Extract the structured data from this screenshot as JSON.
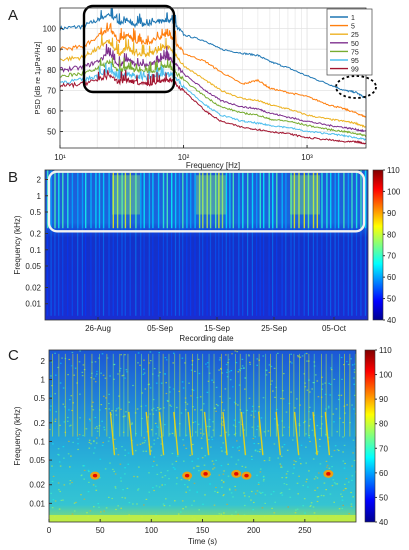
{
  "chart_data": [
    {
      "panel_label": "A",
      "type": "line",
      "xlabel": "Frequency [Hz]",
      "ylabel": "PSD [dB re 1μPa²/Hz]",
      "xscale": "log",
      "xlim": [
        10,
        3000
      ],
      "ylim": [
        42,
        110
      ],
      "xticks": [
        "10¹",
        "10²",
        "10³"
      ],
      "yticks": [
        50,
        60,
        70,
        80,
        90,
        100
      ],
      "grid": true,
      "legend_position": "top-right",
      "x": [
        10,
        15,
        20,
        25,
        30,
        35,
        40,
        50,
        60,
        70,
        80,
        100,
        150,
        200,
        300,
        400,
        500,
        700,
        1000,
        1500,
        2000,
        2500,
        3000
      ],
      "series": [
        {
          "name": "1",
          "color": "#1f77b4",
          "values": [
            100,
            101,
            104,
            107,
            103,
            104,
            102,
            102,
            103,
            104,
            104,
            97,
            94,
            90,
            88,
            87,
            84,
            81,
            77,
            73,
            70,
            69,
            66
          ]
        },
        {
          "name": "5",
          "color": "#ff7f0e",
          "values": [
            90,
            91,
            96,
            100,
            94,
            97,
            94,
            93,
            95,
            97,
            96,
            88,
            84,
            79,
            73,
            75,
            71,
            69,
            67,
            63,
            61,
            59,
            57
          ]
        },
        {
          "name": "25",
          "color": "#edb120",
          "values": [
            85,
            86,
            90,
            94,
            87,
            91,
            88,
            87,
            89,
            91,
            90,
            82,
            75,
            70,
            66,
            65,
            63,
            61,
            58,
            56,
            55,
            54,
            52
          ]
        },
        {
          "name": "50",
          "color": "#7e2f8e",
          "values": [
            80,
            81,
            84,
            88,
            82,
            85,
            83,
            82,
            84,
            86,
            85,
            78,
            70,
            65,
            62,
            61,
            59,
            57,
            55,
            53,
            52,
            51,
            50
          ]
        },
        {
          "name": "75",
          "color": "#77ac30",
          "values": [
            77,
            78,
            80,
            84,
            79,
            81,
            80,
            79,
            80,
            82,
            81,
            75,
            67,
            62,
            59,
            58,
            56,
            55,
            53,
            51,
            50,
            49,
            48
          ]
        },
        {
          "name": "95",
          "color": "#4dbeee",
          "values": [
            74,
            75,
            77,
            80,
            76,
            78,
            77,
            76,
            77,
            78,
            78,
            72,
            63,
            58,
            55,
            54,
            53,
            52,
            50,
            49,
            48,
            47,
            46
          ]
        },
        {
          "name": "99",
          "color": "#a2142f",
          "values": [
            72,
            73,
            75,
            77,
            74,
            75,
            74,
            73,
            74,
            75,
            75,
            70,
            60,
            55,
            52,
            51,
            50,
            49,
            47,
            46,
            45,
            45,
            44
          ]
        }
      ]
    },
    {
      "panel_label": "B",
      "type": "heatmap",
      "xlabel": "Recording date",
      "ylabel": "Frequency (kHz)",
      "yscale": "log",
      "ylim_khz": [
        0.005,
        3
      ],
      "yticks": [
        "2",
        "1",
        "0.5",
        "0.2",
        "0.1",
        "0.05",
        "0.02",
        "0.01"
      ],
      "xticks": [
        "26-Aug",
        "05-Sep",
        "15-Sep",
        "25-Sep",
        "05-Oct"
      ],
      "colorbar": {
        "min": 40,
        "max": 110,
        "ticks": [
          40,
          50,
          60,
          70,
          80,
          90,
          100,
          110
        ],
        "colormap": "jet"
      }
    },
    {
      "panel_label": "C",
      "type": "heatmap",
      "xlabel": "Time (s)",
      "ylabel": "Frequency (kHz)",
      "yscale": "log",
      "xlim": [
        0,
        300
      ],
      "ylim_khz": [
        0.005,
        3
      ],
      "xticks": [
        "0",
        "50",
        "100",
        "150",
        "200",
        "250"
      ],
      "yticks": [
        "2",
        "1",
        "0.5",
        "0.2",
        "0.1",
        "0.05",
        "0.02",
        "0.01"
      ],
      "colorbar": {
        "min": 40,
        "max": 110,
        "ticks": [
          40,
          50,
          60,
          70,
          80,
          90,
          100,
          110
        ],
        "colormap": "jet"
      }
    }
  ]
}
